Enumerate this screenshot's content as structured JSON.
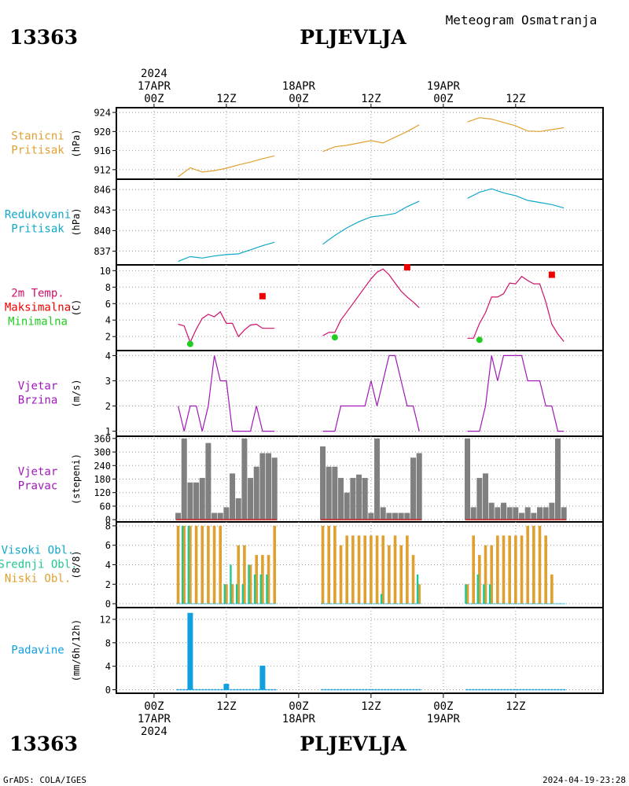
{
  "header": {
    "station_id": "13363",
    "station_name": "PLJEVLJA",
    "subtitle": "Meteogram Osmatranja"
  },
  "footer": {
    "left": "GrADS: COLA/IGES",
    "right": "2024-04-19-23:28"
  },
  "time_axis": {
    "ticks": [
      {
        "h": 0,
        "top": [
          "2024",
          "17APR",
          "00Z"
        ],
        "bottom": [
          "00Z",
          "17APR",
          "2024"
        ]
      },
      {
        "h": 12,
        "top": [
          "12Z"
        ],
        "bottom": [
          "12Z"
        ]
      },
      {
        "h": 24,
        "top": [
          "18APR",
          "00Z"
        ],
        "bottom": [
          "00Z",
          "18APR"
        ]
      },
      {
        "h": 36,
        "top": [
          "12Z"
        ],
        "bottom": [
          "12Z"
        ]
      },
      {
        "h": 48,
        "top": [
          "19APR",
          "00Z"
        ],
        "bottom": [
          "00Z",
          "19APR"
        ]
      },
      {
        "h": 60,
        "top": [
          "12Z"
        ],
        "bottom": [
          "12Z"
        ]
      }
    ]
  },
  "colors": {
    "station_pressure": "#e0a030",
    "reduced_pressure": "#10a8c8",
    "temperature": "#d0106a",
    "tmax": "#ee0000",
    "tmin": "#20cc20",
    "wind": "#a018b8",
    "wind_dir_bars": "#808080",
    "high_cloud": "#10a8c8",
    "mid_cloud": "#20c890",
    "low_cloud": "#e0a030",
    "precip": "#10a0e0",
    "title_label": "#000000"
  },
  "chart_data": [
    {
      "type": "line",
      "labels": [
        "Stanicni",
        "Pritisak"
      ],
      "ylabel": "(hPa)",
      "ylim": [
        910,
        925
      ],
      "yticks": [
        912,
        916,
        920,
        924
      ],
      "segments": [
        {
          "x": [
            4,
            6,
            8,
            10,
            12,
            14,
            16,
            18,
            20
          ],
          "y": [
            910.5,
            912.4,
            911.5,
            911.8,
            912.3,
            913.0,
            913.6,
            914.3,
            914.9
          ]
        },
        {
          "x": [
            28,
            30,
            32,
            34,
            36,
            38,
            40,
            42,
            44
          ],
          "y": [
            915.8,
            916.8,
            917.1,
            917.6,
            918.1,
            917.6,
            918.8,
            920.0,
            921.4
          ]
        },
        {
          "x": [
            52,
            54,
            56,
            58,
            60,
            62,
            64,
            66,
            68
          ],
          "y": [
            922.0,
            922.9,
            922.6,
            921.9,
            921.2,
            920.1,
            920.0,
            920.4,
            920.8
          ]
        }
      ]
    },
    {
      "type": "line",
      "labels": [
        "Redukovani",
        "Pritisak"
      ],
      "ylabel": "(hPa)",
      "ylim": [
        835,
        847.5
      ],
      "yticks": [
        837,
        840,
        843,
        846
      ],
      "segments": [
        {
          "x": [
            4,
            6,
            8,
            10,
            12,
            14,
            16,
            18,
            20
          ],
          "y": [
            835.5,
            836.2,
            836.0,
            836.3,
            836.5,
            836.6,
            837.2,
            837.8,
            838.3
          ]
        },
        {
          "x": [
            28,
            30,
            32,
            34,
            36,
            38,
            40,
            42,
            44
          ],
          "y": [
            838.0,
            839.3,
            840.4,
            841.3,
            842.0,
            842.2,
            842.5,
            843.5,
            844.3
          ]
        },
        {
          "x": [
            52,
            54,
            56,
            58,
            60,
            62,
            64,
            66,
            68
          ],
          "y": [
            844.7,
            845.6,
            846.1,
            845.5,
            845.1,
            844.4,
            844.1,
            843.8,
            843.3
          ]
        }
      ]
    },
    {
      "type": "line",
      "labels": [
        "2m Temp.",
        "Maksimalna",
        "Minimalna"
      ],
      "label_colors": [
        "temperature",
        "tmax",
        "tmin"
      ],
      "ylabel": "(C)",
      "ylim": [
        0.3,
        10.7
      ],
      "yticks": [
        2,
        4,
        6,
        8,
        10
      ],
      "segments": [
        {
          "x": [
            4,
            5,
            6,
            7,
            8,
            9,
            10,
            11,
            12,
            13,
            14,
            15,
            16,
            17,
            18,
            19,
            20
          ],
          "y": [
            3.5,
            3.3,
            1.3,
            2.9,
            4.2,
            4.7,
            4.4,
            5.0,
            3.6,
            3.6,
            2.0,
            2.8,
            3.4,
            3.5,
            3.0,
            3.0,
            3.0
          ]
        },
        {
          "x": [
            28,
            29,
            30,
            31,
            32,
            33,
            34,
            35,
            36,
            37,
            38,
            39,
            40,
            41,
            42,
            43,
            44
          ],
          "y": [
            2.1,
            2.5,
            2.5,
            4.0,
            5.0,
            6.0,
            7.0,
            8.0,
            9.0,
            9.8,
            10.2,
            9.5,
            8.5,
            7.5,
            6.8,
            6.2,
            5.5
          ]
        },
        {
          "x": [
            52,
            53,
            54,
            55,
            56,
            57,
            58,
            59,
            60,
            61,
            62,
            63,
            64,
            65,
            66,
            67,
            68
          ],
          "y": [
            1.8,
            1.8,
            3.6,
            4.9,
            6.8,
            6.8,
            7.2,
            8.5,
            8.4,
            9.3,
            8.8,
            8.4,
            8.4,
            6.2,
            3.5,
            2.3,
            1.4
          ]
        }
      ],
      "tmax_points": [
        {
          "x": 18,
          "y": 6.9
        },
        {
          "x": 42,
          "y": 10.4
        },
        {
          "x": 66,
          "y": 9.5
        }
      ],
      "tmin_points": [
        {
          "x": 6,
          "y": 1.1
        },
        {
          "x": 30,
          "y": 1.9
        },
        {
          "x": 54,
          "y": 1.6
        }
      ]
    },
    {
      "type": "line",
      "labels": [
        "Vjetar",
        "Brzina"
      ],
      "ylabel": "(m/s)",
      "ylim": [
        0.8,
        4.2
      ],
      "yticks": [
        1,
        2,
        3,
        4
      ],
      "segments": [
        {
          "x": [
            4,
            5,
            6,
            7,
            8,
            9,
            10,
            11,
            12,
            13,
            14,
            15,
            16,
            17,
            18,
            19,
            20
          ],
          "y": [
            2,
            1,
            2,
            2,
            1,
            2,
            4,
            3,
            3,
            1,
            1,
            1,
            1,
            2,
            1,
            1,
            1
          ]
        },
        {
          "x": [
            28,
            29,
            30,
            31,
            32,
            33,
            34,
            35,
            36,
            37,
            38,
            39,
            40,
            41,
            42,
            43,
            44
          ],
          "y": [
            1,
            1,
            1,
            2,
            2,
            2,
            2,
            2,
            3,
            2,
            3,
            4,
            4,
            3,
            2,
            2,
            1
          ]
        },
        {
          "x": [
            52,
            53,
            54,
            55,
            56,
            57,
            58,
            59,
            60,
            61,
            62,
            63,
            64,
            65,
            66,
            67,
            68
          ],
          "y": [
            1,
            1,
            1,
            2,
            4,
            3,
            4,
            4,
            4,
            4,
            3,
            3,
            3,
            2,
            2,
            1,
            1
          ]
        }
      ]
    },
    {
      "type": "bar",
      "labels": [
        "Vjetar",
        "Pravac"
      ],
      "ylabel": "(stepeni)",
      "ylim": [
        -10,
        370
      ],
      "yticks": [
        0,
        60,
        120,
        180,
        240,
        300,
        360
      ],
      "segments": [
        {
          "x": [
            4,
            5,
            6,
            7,
            8,
            9,
            10,
            11,
            12,
            13,
            14,
            15,
            16,
            17,
            18,
            19,
            20
          ],
          "y": [
            30,
            360,
            165,
            165,
            185,
            340,
            30,
            30,
            55,
            205,
            95,
            360,
            185,
            235,
            295,
            295,
            275
          ]
        },
        {
          "x": [
            28,
            29,
            30,
            31,
            32,
            33,
            34,
            35,
            36,
            37,
            38,
            39,
            40,
            41,
            42,
            43,
            44
          ],
          "y": [
            325,
            235,
            235,
            185,
            120,
            185,
            200,
            185,
            30,
            360,
            55,
            30,
            30,
            30,
            30,
            275,
            295
          ]
        },
        {
          "x": [
            52,
            53,
            54,
            55,
            56,
            57,
            58,
            59,
            60,
            61,
            62,
            63,
            64,
            65,
            66,
            67,
            68
          ],
          "y": [
            360,
            55,
            185,
            205,
            75,
            55,
            75,
            55,
            55,
            30,
            55,
            30,
            55,
            55,
            75,
            360,
            55
          ]
        }
      ]
    },
    {
      "type": "bar",
      "labels": [
        "Visoki Obl.",
        "Srednji Obl.",
        "Niski Obl."
      ],
      "label_colors": [
        "high_cloud",
        "mid_cloud",
        "low_cloud"
      ],
      "ylabel": "(8/8)",
      "ylim": [
        -0.4,
        8.4
      ],
      "yticks": [
        0,
        2,
        4,
        6,
        8
      ],
      "segments": [
        {
          "x": [
            4,
            5,
            6,
            7,
            8,
            9,
            10,
            11,
            12,
            13,
            14,
            15,
            16,
            17,
            18,
            19,
            20
          ],
          "low": [
            8,
            8,
            8,
            8,
            8,
            8,
            8,
            8,
            2,
            2,
            6,
            6,
            4,
            5,
            5,
            5,
            8
          ],
          "mid": [
            0,
            8,
            8,
            0,
            0,
            0,
            0,
            0,
            2,
            4,
            2,
            2,
            4,
            3,
            3,
            3,
            0
          ]
        },
        {
          "x": [
            28,
            29,
            30,
            31,
            32,
            33,
            34,
            35,
            36,
            37,
            38,
            39,
            40,
            41,
            42,
            43,
            44
          ],
          "low": [
            8,
            8,
            8,
            6,
            7,
            7,
            7,
            7,
            7,
            7,
            7,
            6,
            7,
            6,
            7,
            5,
            2
          ],
          "mid": [
            0,
            0,
            0,
            0,
            0,
            0,
            0,
            0,
            0,
            0,
            1,
            0,
            0,
            0,
            0,
            0,
            3
          ]
        },
        {
          "x": [
            52,
            53,
            54,
            55,
            56,
            57,
            58,
            59,
            60,
            61,
            62,
            63,
            64,
            65,
            66,
            67,
            68
          ],
          "low": [
            2,
            7,
            5,
            6,
            6,
            7,
            7,
            7,
            7,
            7,
            8,
            8,
            8,
            7,
            3,
            0,
            0
          ],
          "mid": [
            2,
            0,
            3,
            2,
            2,
            0,
            0,
            0,
            0,
            0,
            0,
            0,
            0,
            0,
            0,
            0,
            0
          ]
        }
      ]
    },
    {
      "type": "bar",
      "labels": [
        "Padavine"
      ],
      "ylabel": "(mm/6h/12h)",
      "ylim": [
        -0.6,
        14
      ],
      "yticks": [
        0,
        4,
        8,
        12
      ],
      "start_hours": [
        4,
        28,
        52
      ],
      "end_hours": [
        20,
        44,
        68
      ],
      "bars": [
        {
          "x": 6,
          "v": 13.1
        },
        {
          "x": 12,
          "v": 1.0
        },
        {
          "x": 18,
          "v": 4.1
        }
      ]
    }
  ]
}
